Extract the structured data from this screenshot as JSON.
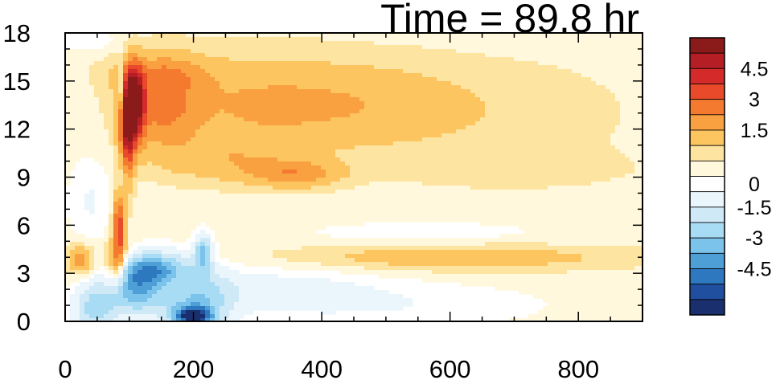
{
  "chart_data": {
    "type": "heatmap",
    "title": "Time = 89.8 hr",
    "xlabel": "",
    "ylabel": "",
    "xlim": [
      0,
      900
    ],
    "ylim": [
      0,
      18
    ],
    "x_ticks": [
      "0",
      "200",
      "400",
      "600",
      "800"
    ],
    "x_tick_values": [
      0,
      200,
      400,
      600,
      800
    ],
    "y_ticks": [
      "0",
      "3",
      "6",
      "9",
      "12",
      "15",
      "18"
    ],
    "y_tick_values": [
      0,
      3,
      6,
      9,
      12,
      15,
      18
    ],
    "colorbar": {
      "labels": [
        "4.5",
        "3",
        "1.5",
        "0",
        "-1.5",
        "-3",
        "-4.5"
      ],
      "label_values": [
        4.5,
        3,
        1.5,
        0,
        -1.5,
        -3,
        -4.5
      ],
      "levels": [
        6,
        5.25,
        4.5,
        3.75,
        3,
        2.25,
        1.5,
        0.75,
        0.25,
        -0.25,
        -0.75,
        -1.5,
        -2.25,
        -3,
        -3.75,
        -4.5,
        -5.25,
        -6
      ],
      "colors": [
        "#8b1a1a",
        "#b41e24",
        "#d42a2a",
        "#e84a2a",
        "#f47a30",
        "#f9a040",
        "#fcc560",
        "#fde4a0",
        "#fff8dc",
        "#ffffff",
        "#eaf6fc",
        "#cfe9f7",
        "#a8dcf4",
        "#7cc3ec",
        "#4e9fd6",
        "#2e78c0",
        "#1f4f9e",
        "#1a2f6e"
      ]
    },
    "features": [
      {
        "x": 105,
        "y": 13.5,
        "sx": 12,
        "sy": 1.6,
        "value": 6.5
      },
      {
        "x": 95,
        "y": 11.0,
        "sx": 8,
        "sy": 2.0,
        "value": 3.5
      },
      {
        "x": 85,
        "y": 6.0,
        "sx": 7,
        "sy": 1.6,
        "value": 4.0
      },
      {
        "x": 78,
        "y": 3.5,
        "sx": 12,
        "sy": 1.0,
        "value": 2.5
      },
      {
        "x": 25,
        "y": 3.8,
        "sx": 15,
        "sy": 0.7,
        "value": 2.0
      },
      {
        "x": 150,
        "y": 13.5,
        "sx": 40,
        "sy": 2.0,
        "value": 2.0
      },
      {
        "x": 290,
        "y": 13.5,
        "sx": 110,
        "sy": 2.2,
        "value": 1.4
      },
      {
        "x": 480,
        "y": 13.5,
        "sx": 110,
        "sy": 2.0,
        "value": 1.0
      },
      {
        "x": 700,
        "y": 13.0,
        "sx": 140,
        "sy": 2.5,
        "value": 0.5
      },
      {
        "x": 360,
        "y": 9.2,
        "sx": 50,
        "sy": 0.6,
        "value": 1.8
      },
      {
        "x": 250,
        "y": 10.0,
        "sx": 70,
        "sy": 1.0,
        "value": 1.0
      },
      {
        "x": 700,
        "y": 9.5,
        "sx": 130,
        "sy": 0.8,
        "value": 0.5
      },
      {
        "x": 600,
        "y": 4.0,
        "sx": 200,
        "sy": 0.6,
        "value": 1.3
      },
      {
        "x": 150,
        "y": 15.5,
        "sx": 60,
        "sy": 0.8,
        "value": 1.0
      },
      {
        "x": 170,
        "y": 2.5,
        "sx": 35,
        "sy": 0.9,
        "value": 1.8
      },
      {
        "x": 140,
        "y": 3.2,
        "sx": 40,
        "sy": 0.8,
        "value": -4.5
      },
      {
        "x": 110,
        "y": 1.8,
        "sx": 30,
        "sy": 1.0,
        "value": -3.0
      },
      {
        "x": 200,
        "y": 1.3,
        "sx": 40,
        "sy": 1.4,
        "value": -3.0
      },
      {
        "x": 215,
        "y": 4.3,
        "sx": 10,
        "sy": 0.8,
        "value": -3.0
      },
      {
        "x": 200,
        "y": 0.3,
        "sx": 20,
        "sy": 0.4,
        "value": -5.0
      },
      {
        "x": 330,
        "y": 2.0,
        "sx": 120,
        "sy": 1.2,
        "value": -1.0
      },
      {
        "x": 560,
        "y": 5.5,
        "sx": 150,
        "sy": 0.6,
        "value": -0.5
      },
      {
        "x": 550,
        "y": 1.0,
        "sx": 150,
        "sy": 1.0,
        "value": -0.6
      },
      {
        "x": 45,
        "y": 0.8,
        "sx": 25,
        "sy": 1.2,
        "value": -2.5
      },
      {
        "x": 40,
        "y": 7.5,
        "sx": 25,
        "sy": 2.0,
        "value": -0.8
      },
      {
        "x": 90,
        "y": 9.0,
        "sx": 6,
        "sy": 2.5,
        "value": -1.5
      },
      {
        "x": 30,
        "y": 17.5,
        "sx": 40,
        "sy": 0.5,
        "value": -0.6
      },
      {
        "x": 88,
        "y": 14.5,
        "sx": 4,
        "sy": 1.2,
        "value": -2.5
      }
    ]
  }
}
